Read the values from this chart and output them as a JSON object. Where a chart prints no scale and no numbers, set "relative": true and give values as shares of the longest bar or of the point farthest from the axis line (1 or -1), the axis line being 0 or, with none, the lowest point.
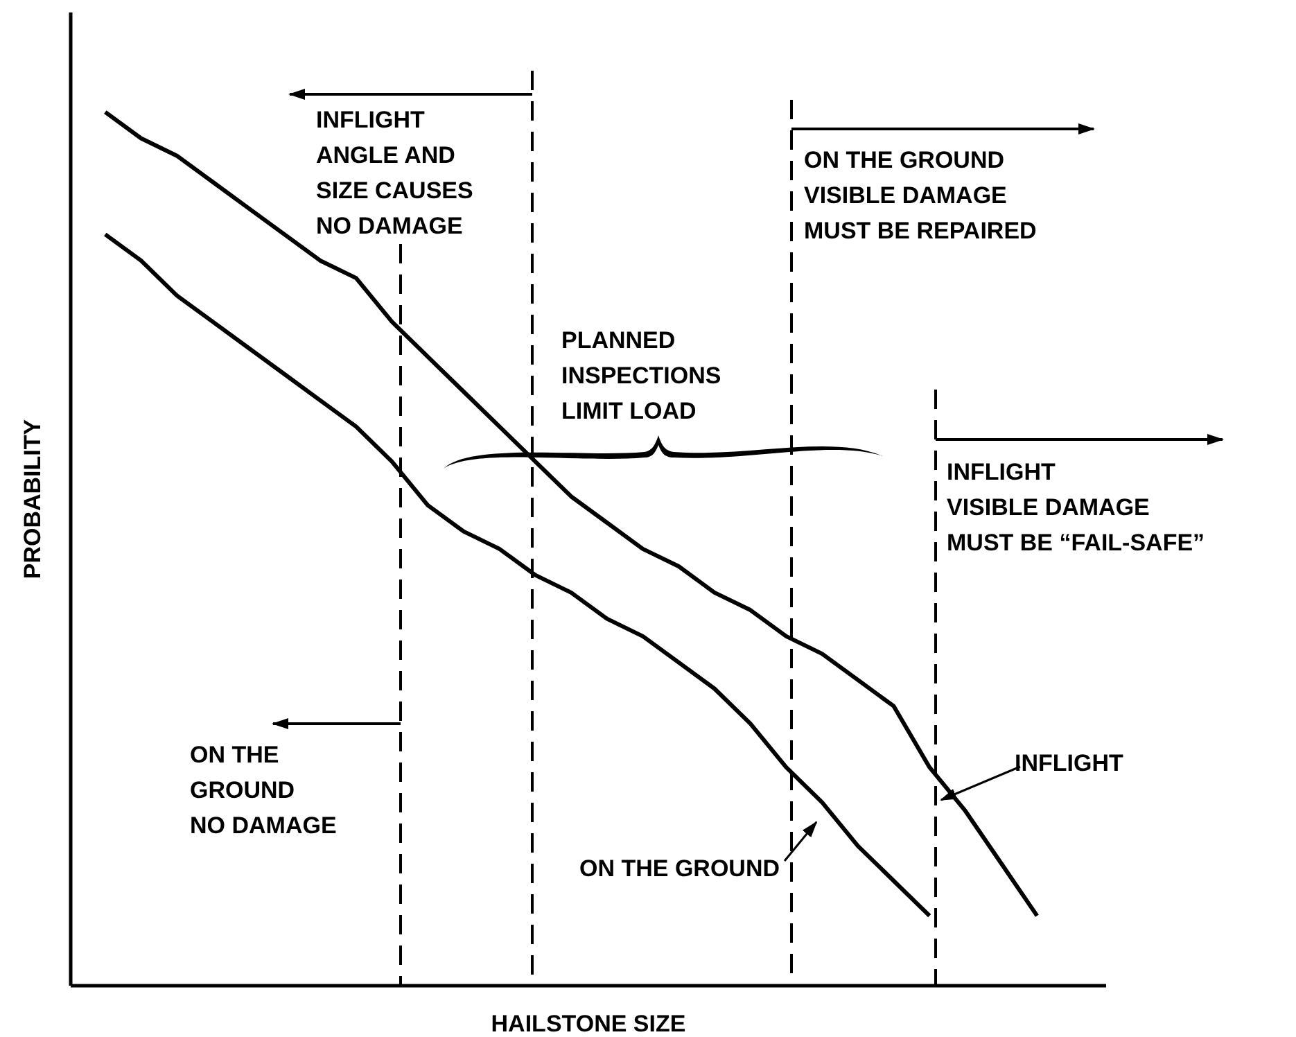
{
  "chart_data": {
    "type": "line",
    "xlabel": "HAILSTONE SIZE",
    "ylabel": "PROBABILITY",
    "relative": true,
    "marker": "none",
    "line_style": "solid",
    "categories": [
      null,
      null,
      null,
      null,
      null,
      null,
      null,
      null,
      null,
      null,
      null,
      null,
      null,
      null,
      null,
      null,
      null,
      null,
      null,
      null,
      null,
      null,
      null,
      null,
      null,
      null,
      null
    ],
    "series": [
      {
        "name": "INFLIGHT",
        "color": "#000000",
        "values": [
          1,
          0.97,
          0.95,
          0.92,
          0.89,
          0.86,
          0.83,
          0.81,
          0.76,
          0.72,
          0.68,
          0.64,
          0.6,
          0.56,
          0.53,
          0.5,
          0.48,
          0.45,
          0.43,
          0.4,
          0.38,
          0.35,
          0.32,
          0.25,
          0.2,
          0.14,
          0.08
        ]
      },
      {
        "name": "ON THE GROUND",
        "color": "#000000",
        "values": [
          0.86,
          0.83,
          0.79,
          0.76,
          0.73,
          0.7,
          0.67,
          0.64,
          0.6,
          0.55,
          0.52,
          0.5,
          0.47,
          0.45,
          0.42,
          0.4,
          0.37,
          0.34,
          0.3,
          0.25,
          0.21,
          0.16,
          0.12,
          0.08,
          null,
          null,
          null
        ]
      }
    ],
    "annotations": [
      "INFLIGHT\nANGLE AND\nSIZE CAUSES\nNO DAMAGE",
      "ON THE GROUND\nVISIBLE DAMAGE\nMUST BE REPAIRED",
      "PLANNED\nINSPECTIONS\nLIMIT LOAD",
      "INFLIGHT\nVISIBLE DAMAGE\nMUST BE “FAIL-SAFE”",
      "ON THE\nGROUND\nNO DAMAGE"
    ]
  }
}
